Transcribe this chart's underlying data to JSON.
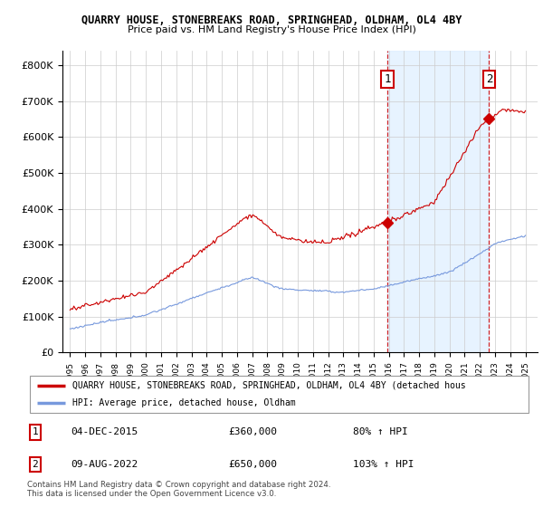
{
  "title": "QUARRY HOUSE, STONEBREAKS ROAD, SPRINGHEAD, OLDHAM, OL4 4BY",
  "subtitle": "Price paid vs. HM Land Registry's House Price Index (HPI)",
  "hpi_color": "#7799dd",
  "hpi_fill_color": "#ddeeff",
  "price_color": "#cc0000",
  "vline_color": "#cc0000",
  "sale1_x": 2015.92,
  "sale1_y": 360000,
  "sale2_x": 2022.61,
  "sale2_y": 650000,
  "ylim_min": 0,
  "ylim_max": 840000,
  "xlim_min": 1994.5,
  "xlim_max": 2025.8,
  "legend_label_price": "QUARRY HOUSE, STONEBREAKS ROAD, SPRINGHEAD, OLDHAM, OL4 4BY (detached hous",
  "legend_label_hpi": "HPI: Average price, detached house, Oldham",
  "table_data": [
    {
      "num": "1",
      "date": "04-DEC-2015",
      "price": "£360,000",
      "pct": "80% ↑ HPI"
    },
    {
      "num": "2",
      "date": "09-AUG-2022",
      "price": "£650,000",
      "pct": "103% ↑ HPI"
    }
  ],
  "footer": "Contains HM Land Registry data © Crown copyright and database right 2024.\nThis data is licensed under the Open Government Licence v3.0.",
  "yticks": [
    0,
    100000,
    200000,
    300000,
    400000,
    500000,
    600000,
    700000,
    800000
  ],
  "ytick_labels": [
    "£0",
    "£100K",
    "£200K",
    "£300K",
    "£400K",
    "£500K",
    "£600K",
    "£700K",
    "£800K"
  ]
}
